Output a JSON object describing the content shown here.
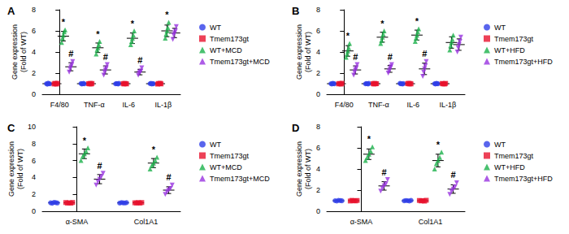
{
  "chart_data": [
    {
      "type": "scatter",
      "title": "A",
      "ylabel": "Gene expression\n(Fold of WT)",
      "categories": [
        "F4/80",
        "TNF-α",
        "IL-6",
        "IL-1β"
      ],
      "ylim": [
        0,
        8
      ],
      "yticks": [
        0,
        2,
        4,
        6,
        8
      ],
      "grid": false,
      "legend": "right",
      "series": [
        {
          "name": "WT",
          "color": "#2F3FE8",
          "marker": "circle",
          "values": [
            [
              1.0,
              0.95,
              1.05,
              1.0,
              0.98
            ],
            [
              1.02,
              0.97,
              1.0,
              1.03,
              0.98
            ],
            [
              0.98,
              1.02,
              1.0,
              0.97,
              1.03
            ],
            [
              1.0,
              1.04,
              0.96,
              1.01,
              0.99
            ]
          ],
          "mean": [
            1.0,
            1.0,
            1.0,
            1.0
          ],
          "sd": [
            0.03,
            0.03,
            0.03,
            0.03
          ]
        },
        {
          "name": "Tmem173gt",
          "color": "#E8112D",
          "marker": "square",
          "values": [
            [
              0.97,
              1.03,
              1.0,
              0.96,
              1.04
            ],
            [
              1.0,
              0.98,
              1.03,
              0.97,
              1.02
            ],
            [
              1.01,
              0.97,
              1.03,
              1.0,
              0.98
            ],
            [
              0.96,
              1.02,
              1.0,
              1.04,
              0.98
            ]
          ],
          "mean": [
            1.0,
            1.0,
            1.0,
            1.0
          ],
          "sd": [
            0.03,
            0.03,
            0.03,
            0.03
          ]
        },
        {
          "name": "WT+MCD",
          "color": "#1BB24B",
          "marker": "triangle",
          "values": [
            [
              4.9,
              5.3,
              5.6,
              5.9,
              6.1
            ],
            [
              3.8,
              4.2,
              4.4,
              4.7,
              5.0
            ],
            [
              4.7,
              5.0,
              5.3,
              5.6,
              6.0
            ],
            [
              5.3,
              5.7,
              6.0,
              6.3,
              6.8
            ]
          ],
          "mean": [
            5.5,
            4.4,
            5.3,
            6.0
          ],
          "sd": [
            0.45,
            0.45,
            0.5,
            0.55
          ],
          "marks": [
            "*",
            "*",
            "*",
            "*"
          ]
        },
        {
          "name": "Tmem173gt+MCD",
          "color": "#9933E0",
          "marker": "triangle_down",
          "values": [
            [
              2.1,
              2.4,
              2.6,
              2.8,
              3.1
            ],
            [
              1.8,
              2.1,
              2.3,
              2.5,
              2.8
            ],
            [
              1.8,
              2.0,
              2.1,
              2.2,
              2.5
            ],
            [
              5.2,
              5.6,
              5.8,
              6.0,
              6.4
            ]
          ],
          "mean": [
            2.6,
            2.3,
            2.1,
            5.8
          ],
          "sd": [
            0.38,
            0.38,
            0.26,
            0.44
          ],
          "marks": [
            "#",
            "#",
            "#",
            null
          ]
        }
      ]
    },
    {
      "type": "scatter",
      "title": "B",
      "ylabel": "Gene expression\n(Fold of WT)",
      "categories": [
        "F4/80",
        "TNF-α",
        "IL-6",
        "IL-1β"
      ],
      "ylim": [
        0,
        8
      ],
      "yticks": [
        0,
        2,
        4,
        6,
        8
      ],
      "grid": false,
      "legend": "right",
      "series": [
        {
          "name": "WT",
          "color": "#2F3FE8",
          "marker": "circle",
          "values": [
            [
              1.0,
              0.96,
              1.04,
              1.01,
              0.99
            ],
            [
              0.98,
              1.02,
              1.0,
              0.97,
              1.03
            ],
            [
              1.03,
              0.98,
              1.0,
              0.96,
              1.02
            ],
            [
              1.0,
              0.97,
              1.03,
              1.01,
              0.99
            ]
          ],
          "mean": [
            1.0,
            1.0,
            1.0,
            1.0
          ],
          "sd": [
            0.03,
            0.03,
            0.03,
            0.03
          ]
        },
        {
          "name": "Tmem173gt",
          "color": "#E8112D",
          "marker": "square",
          "values": [
            [
              0.98,
              1.02,
              1.0,
              0.96,
              1.04
            ],
            [
              1.01,
              0.97,
              1.03,
              0.99,
              1.0
            ],
            [
              1.0,
              1.04,
              0.97,
              1.02,
              0.98
            ],
            [
              1.02,
              0.98,
              1.0,
              0.97,
              1.03
            ]
          ],
          "mean": [
            1.0,
            1.0,
            1.0,
            1.0
          ],
          "sd": [
            0.03,
            0.03,
            0.03,
            0.03
          ]
        },
        {
          "name": "WT+HFD",
          "color": "#1BB24B",
          "marker": "triangle",
          "values": [
            [
              3.5,
              3.8,
              4.1,
              4.4,
              4.8
            ],
            [
              4.8,
              5.1,
              5.4,
              5.7,
              6.0
            ],
            [
              5.0,
              5.3,
              5.6,
              5.9,
              6.2
            ],
            [
              4.2,
              4.6,
              4.9,
              5.2,
              5.6
            ]
          ],
          "mean": [
            4.1,
            5.4,
            5.6,
            4.9
          ],
          "sd": [
            0.5,
            0.47,
            0.47,
            0.54
          ],
          "marks": [
            "*",
            "*",
            "*",
            null
          ]
        },
        {
          "name": "Tmem173gt+HFD",
          "color": "#9933E0",
          "marker": "triangle_down",
          "values": [
            [
              1.8,
              2.1,
              2.3,
              2.5,
              2.8
            ],
            [
              2.0,
              2.2,
              2.4,
              2.6,
              2.8
            ],
            [
              1.7,
              2.1,
              2.4,
              2.7,
              3.1
            ],
            [
              4.0,
              4.4,
              4.7,
              5.0,
              5.4
            ]
          ],
          "mean": [
            2.3,
            2.4,
            2.4,
            4.7
          ],
          "sd": [
            0.38,
            0.32,
            0.54,
            0.54
          ],
          "marks": [
            "#",
            "#",
            "#",
            null
          ]
        }
      ]
    },
    {
      "type": "scatter",
      "title": "C",
      "ylabel": "Gene expression\n(Fold of WT)",
      "categories": [
        "α-SMA",
        "Col1A1"
      ],
      "ylim": [
        0,
        10
      ],
      "yticks": [
        0,
        2,
        4,
        6,
        8,
        10
      ],
      "grid": false,
      "legend": "right",
      "series": [
        {
          "name": "WT",
          "color": "#2F3FE8",
          "marker": "circle",
          "values": [
            [
              1.0,
              0.95,
              1.05,
              1.02,
              0.98
            ],
            [
              0.97,
              1.03,
              1.0,
              0.98,
              1.02
            ]
          ],
          "mean": [
            1.0,
            1.0
          ],
          "sd": [
            0.04,
            0.03
          ]
        },
        {
          "name": "Tmem173gt",
          "color": "#E8112D",
          "marker": "square",
          "values": [
            [
              1.03,
              0.97,
              1.0,
              0.96,
              1.04
            ],
            [
              1.0,
              0.98,
              1.02,
              0.97,
              1.03
            ]
          ],
          "mean": [
            1.0,
            1.0
          ],
          "sd": [
            0.03,
            0.03
          ]
        },
        {
          "name": "WT+MCD",
          "color": "#1BB24B",
          "marker": "triangle",
          "values": [
            [
              6.0,
              6.5,
              6.8,
              7.1,
              7.5
            ],
            [
              5.0,
              5.4,
              5.7,
              6.0,
              6.4
            ]
          ],
          "mean": [
            6.8,
            5.7
          ],
          "sd": [
            0.57,
            0.54
          ],
          "marks": [
            "*",
            "*"
          ]
        },
        {
          "name": "Tmem173gt+MCD",
          "color": "#9933E0",
          "marker": "triangle_down",
          "values": [
            [
              3.1,
              3.5,
              3.8,
              4.1,
              4.5
            ],
            [
              2.0,
              2.3,
              2.5,
              2.7,
              3.1
            ]
          ],
          "mean": [
            3.8,
            2.5
          ],
          "sd": [
            0.54,
            0.4
          ],
          "marks": [
            "#",
            "#"
          ]
        }
      ]
    },
    {
      "type": "scatter",
      "title": "D",
      "ylabel": "Gene expression\n(Fold of WT)",
      "categories": [
        "α-SMA",
        "Col1A1"
      ],
      "ylim": [
        0,
        8
      ],
      "yticks": [
        0,
        2,
        4,
        6,
        8
      ],
      "grid": false,
      "legend": "right",
      "series": [
        {
          "name": "WT",
          "color": "#2F3FE8",
          "marker": "circle",
          "values": [
            [
              1.0,
              0.96,
              1.04,
              1.01,
              0.99
            ],
            [
              0.98,
              1.02,
              1.0,
              0.97,
              1.03
            ]
          ],
          "mean": [
            1.0,
            1.0
          ],
          "sd": [
            0.03,
            0.03
          ]
        },
        {
          "name": "Tmem173gt",
          "color": "#E8112D",
          "marker": "square",
          "values": [
            [
              0.97,
              1.03,
              1.0,
              0.98,
              1.02
            ],
            [
              1.02,
              0.98,
              1.0,
              0.96,
              1.04
            ]
          ],
          "mean": [
            1.0,
            1.0
          ],
          "sd": [
            0.03,
            0.03
          ]
        },
        {
          "name": "WT+HFD",
          "color": "#1BB24B",
          "marker": "triangle",
          "values": [
            [
              4.8,
              5.1,
              5.4,
              5.7,
              6.1
            ],
            [
              4.0,
              4.5,
              4.8,
              5.1,
              5.6
            ]
          ],
          "mean": [
            5.4,
            4.8
          ],
          "sd": [
            0.5,
            0.6
          ],
          "marks": [
            "*",
            "*"
          ]
        },
        {
          "name": "Tmem173gt+HFD",
          "color": "#9933E0",
          "marker": "triangle_down",
          "values": [
            [
              1.9,
              2.2,
              2.4,
              2.6,
              3.0
            ],
            [
              1.6,
              1.9,
              2.1,
              2.3,
              2.7
            ]
          ],
          "mean": [
            2.4,
            2.1
          ],
          "sd": [
            0.4,
            0.4
          ],
          "marks": [
            "#",
            "#"
          ]
        }
      ]
    }
  ]
}
